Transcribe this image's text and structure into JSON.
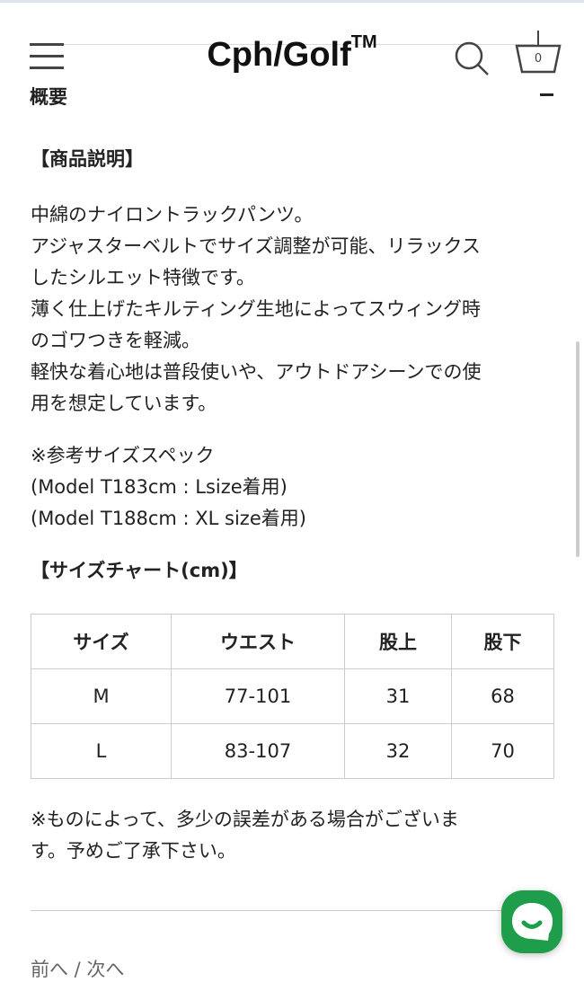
{
  "header": {
    "logo": "Cph/Golf",
    "logo_tm": "TM",
    "cart_count": "0"
  },
  "section": {
    "title": "概要"
  },
  "description": {
    "heading": "【商品説明】",
    "lines": [
      "中綿のナイロントラックパンツ。",
      "アジャスターベルトでサイズ調整が可能、リラックス",
      "したシルエット特徴です。",
      "薄く仕上げたキルティング生地によってスウィング時",
      "のゴワつきを軽減。",
      "軽快な着心地は普段使いや、アウトドアシーンでの使",
      "用を想定しています。"
    ],
    "size_ref": [
      "※参考サイズスペック",
      "(Model T183cm : Lsize着用)",
      "(Model T188cm : XL size着用)"
    ]
  },
  "size_chart": {
    "heading": "【サイズチャート(cm)】",
    "headers": [
      "サイズ",
      "ウエスト",
      "股上",
      "股下"
    ],
    "rows": [
      [
        "M",
        "77-101",
        "31",
        "68"
      ],
      [
        "L",
        "83-107",
        "32",
        "70"
      ]
    ]
  },
  "note": [
    "※ものによって、多少の誤差がある場合がございま",
    "す。予めご了承下さい。"
  ],
  "pager": "前へ / 次へ",
  "colors": {
    "chat": "#1e9e4a"
  }
}
